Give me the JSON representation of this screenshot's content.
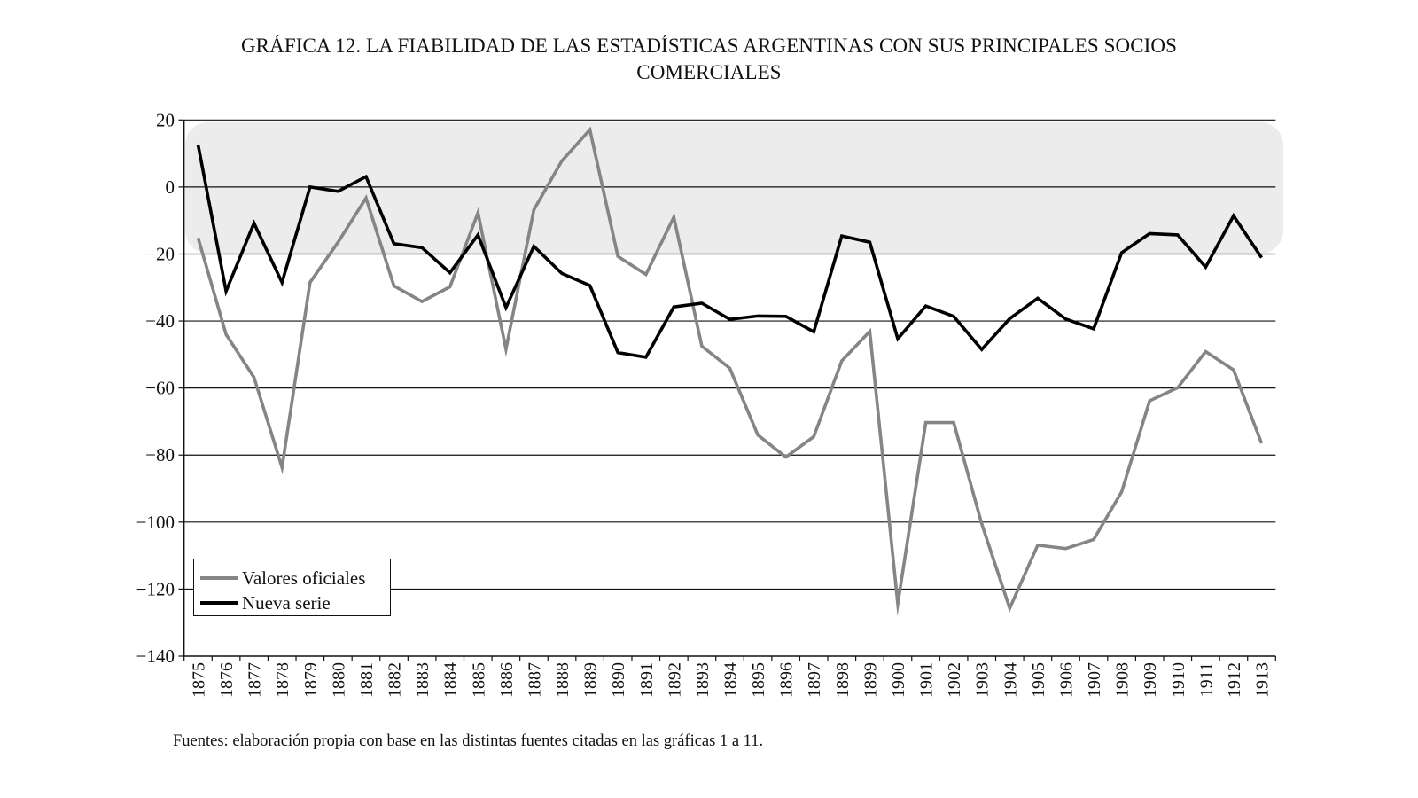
{
  "chart_data": {
    "type": "line",
    "title": "GRÁFICA 12. LA FIABILIDAD DE LAS ESTADÍSTICAS ARGENTINAS CON SUS PRINCIPALES SOCIOS COMERCIALES",
    "title_lines": [
      "GRÁFICA 12. LA FIABILIDAD DE LAS ESTADÍSTICAS ARGENTINAS CON SUS PRINCIPALES SOCIOS",
      "COMERCIALES"
    ],
    "xlabel": "",
    "ylabel": "",
    "ylim": [
      -140,
      20
    ],
    "yticks": [
      20,
      0,
      -20,
      -40,
      -60,
      -80,
      -100,
      -120,
      -140
    ],
    "ytick_labels": [
      "20",
      "0",
      "−20",
      "−40",
      "−60",
      "−80",
      "−100",
      "−120",
      "−140"
    ],
    "grid": "horizontal",
    "shaded_band": [
      -20,
      20
    ],
    "categories": [
      "1875",
      "1876",
      "1877",
      "1878",
      "1879",
      "1880",
      "1881",
      "1882",
      "1883",
      "1884",
      "1885",
      "1886",
      "1887",
      "1888",
      "1889",
      "1890",
      "1891",
      "1892",
      "1893",
      "1894",
      "1895",
      "1896",
      "1897",
      "1898",
      "1899",
      "1900",
      "1901",
      "1902",
      "1903",
      "1904",
      "1905",
      "1906",
      "1907",
      "1908",
      "1909",
      "1910",
      "1911",
      "1912",
      "1913"
    ],
    "series": [
      {
        "name": "Valores oficiales",
        "color": "#858585",
        "values": [
          -15.2,
          -44,
          -56.8,
          -83.7,
          -28.5,
          -16.5,
          -3.3,
          -29.5,
          -34.2,
          -29.8,
          -7.7,
          -48.4,
          -6.8,
          7.8,
          17.1,
          -20.7,
          -26.1,
          -9,
          -47.5,
          -54.1,
          -74,
          -80.6,
          -74.5,
          -51.9,
          -43.1,
          -124.4,
          -70.3,
          -70.3,
          -100.5,
          -125.7,
          -106.9,
          -107.9,
          -105.2,
          -91,
          -63.8,
          -59.9,
          -49.1,
          -54.6,
          -76.5
        ]
      },
      {
        "name": "Nueva serie",
        "color": "#000000",
        "values": [
          12.6,
          -31.1,
          -10.8,
          -28.5,
          0,
          -1.3,
          3.1,
          -16.9,
          -18.1,
          -25.6,
          -14.3,
          -36,
          -17.7,
          -25.8,
          -29.4,
          -49.4,
          -50.8,
          -35.8,
          -34.7,
          -39.5,
          -38.5,
          -38.6,
          -43.2,
          -14.6,
          -16.5,
          -45.3,
          -35.5,
          -38.6,
          -48.5,
          -39.3,
          -33.2,
          -39.4,
          -42.3,
          -19.6,
          -13.9,
          -14.3,
          -23.9,
          -8.6,
          -21.1
        ]
      }
    ],
    "legend": {
      "placement": "bottom-left",
      "entries": [
        "Valores oficiales",
        "Nueva serie"
      ]
    },
    "footnote": "Fuentes: elaboración propia con base en las distintas fuentes citadas en las gráficas 1 a 11."
  }
}
